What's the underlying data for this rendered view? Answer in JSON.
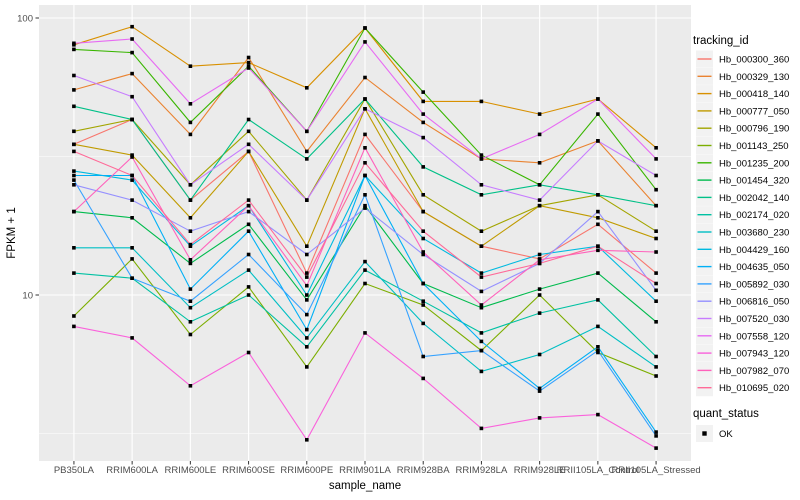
{
  "chart_data": {
    "type": "line",
    "title": "",
    "xlabel": "sample_name",
    "ylabel": "FPKM + 1",
    "y_scale": "log10",
    "ylim": [
      2.5,
      110
    ],
    "yticks": [
      10,
      100
    ],
    "minor_gridlines": [
      3.162,
      31.62
    ],
    "grid": "on",
    "panel_bg": "#EBEBEB",
    "grid_color": "#FFFFFF",
    "point_shape": "filled-square",
    "point_color": "#000000",
    "categories": [
      "PB350LA",
      "RRIM600LA",
      "RRIM600LE",
      "RRIM600SE",
      "RRIM600PE",
      "RRIM901LA",
      "RRIM928BA",
      "RRIM928LA",
      "RRIM928LE",
      "RRII105LA_Control",
      "RRII105LA_Stressed"
    ],
    "series": [
      {
        "name": "Hb_000300_360",
        "color": "#F8766D",
        "values": [
          35,
          43,
          22,
          33,
          12,
          38,
          20,
          15,
          13.5,
          18,
          12
        ]
      },
      {
        "name": "Hb_000329_130",
        "color": "#EA8331",
        "values": [
          55,
          63,
          38,
          72,
          33,
          61,
          42,
          31,
          30,
          36,
          21
        ]
      },
      {
        "name": "Hb_000418_140",
        "color": "#D89000",
        "values": [
          80,
          93,
          67,
          69,
          56,
          92,
          50,
          50,
          45,
          51,
          34
        ]
      },
      {
        "name": "Hb_000777_050",
        "color": "#C09B00",
        "values": [
          35,
          32,
          19,
          33,
          15,
          47,
          20,
          15,
          21,
          19,
          16
        ]
      },
      {
        "name": "Hb_000796_190",
        "color": "#A3A500",
        "values": [
          39,
          43,
          25,
          39,
          22,
          51,
          23,
          17,
          21,
          23,
          17
        ]
      },
      {
        "name": "Hb_001143_250",
        "color": "#7CAE00",
        "values": [
          8.4,
          13.5,
          7.2,
          10.7,
          5.5,
          11,
          9.2,
          6.3,
          10,
          6.2,
          5.1
        ]
      },
      {
        "name": "Hb_001235_200",
        "color": "#39B600",
        "values": [
          77,
          75,
          42,
          67,
          39,
          92,
          54,
          32,
          25,
          45,
          24
        ]
      },
      {
        "name": "Hb_001454_320",
        "color": "#00BB4E",
        "values": [
          20,
          19,
          13,
          18,
          9.6,
          21,
          11,
          9,
          10.5,
          12,
          8
        ]
      },
      {
        "name": "Hb_002042_140",
        "color": "#00C087",
        "values": [
          48,
          43,
          22,
          43,
          31,
          51,
          29,
          23,
          25,
          23,
          21
        ]
      },
      {
        "name": "Hb_002174_020",
        "color": "#00C1A3",
        "values": [
          12,
          11.5,
          8,
          10,
          6.5,
          12.3,
          9.5,
          7.3,
          8.6,
          9.6,
          6
        ]
      },
      {
        "name": "Hb_003680_230",
        "color": "#00BFC4",
        "values": [
          14.8,
          14.8,
          9,
          12.3,
          7,
          13.2,
          7.9,
          5.3,
          6.1,
          7.7,
          5.5
        ]
      },
      {
        "name": "Hb_004429_160",
        "color": "#00BAE0",
        "values": [
          28,
          26,
          15,
          21,
          10,
          27,
          16,
          12,
          14,
          15,
          9.5
        ]
      },
      {
        "name": "Hb_004635_050",
        "color": "#00B0F6",
        "values": [
          27,
          27,
          10.5,
          17,
          7.5,
          27,
          11,
          6.8,
          4.6,
          6.5,
          3.2
        ]
      },
      {
        "name": "Hb_005892_030",
        "color": "#35A2FF",
        "values": [
          26,
          11.5,
          9.5,
          14,
          8.5,
          23,
          6,
          6.3,
          4.5,
          6.3,
          3.1
        ]
      },
      {
        "name": "Hb_006816_050",
        "color": "#9590FF",
        "values": [
          25,
          22,
          17,
          20,
          14,
          20.6,
          14,
          10.3,
          13,
          20,
          10.4
        ]
      },
      {
        "name": "Hb_007520_030",
        "color": "#C77CFF",
        "values": [
          62,
          52,
          25,
          35,
          22,
          47,
          37,
          25,
          22,
          36,
          27
        ]
      },
      {
        "name": "Hb_007558_120",
        "color": "#E76BF3",
        "values": [
          81,
          84,
          49,
          66,
          39,
          82,
          45,
          31,
          38,
          51,
          31
        ]
      },
      {
        "name": "Hb_007943_120",
        "color": "#FA62DB",
        "values": [
          7.7,
          7,
          4.7,
          6.2,
          3,
          7.3,
          5,
          3.3,
          3.6,
          3.7,
          2.8
        ]
      },
      {
        "name": "Hb_007982_070",
        "color": "#FF62BC",
        "values": [
          20,
          31.5,
          13.4,
          21,
          10.8,
          34,
          14.3,
          9.2,
          13.4,
          14.5,
          14.3
        ]
      },
      {
        "name": "Hb_010695_020",
        "color": "#FF6A98",
        "values": [
          33,
          27,
          15.2,
          22,
          11.6,
          30,
          17,
          11.6,
          13,
          15,
          11
        ]
      }
    ],
    "legend": {
      "position": "right",
      "color_title": "tracking_id",
      "shape_title": "quant_status",
      "shape_items": [
        {
          "label": "OK",
          "shape": "filled-square",
          "color": "#000000"
        }
      ],
      "key_bg": "#F2F2F2"
    }
  }
}
